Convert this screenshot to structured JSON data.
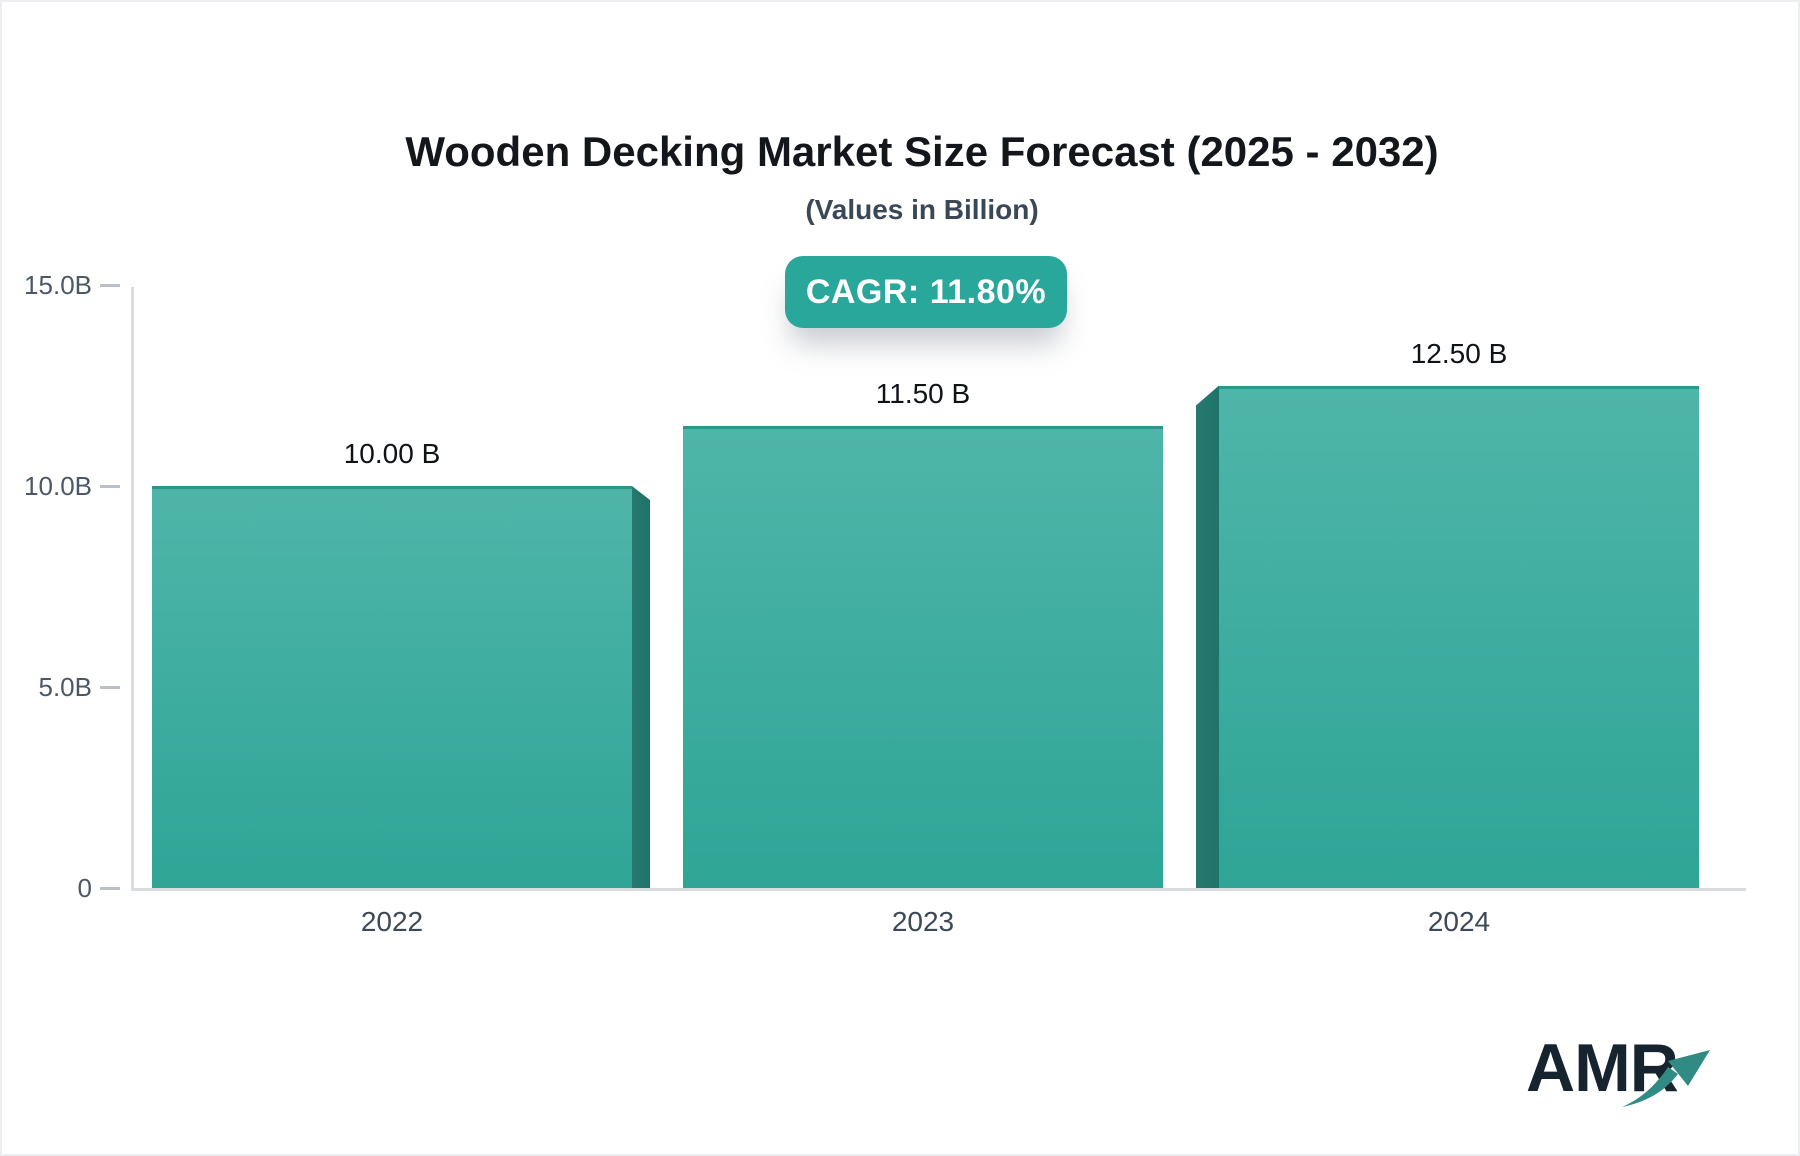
{
  "title": "Wooden Decking Market Size Forecast (2025 - 2032)",
  "subtitle": "(Values in Billion)",
  "badge": {
    "label": "CAGR: 11.80%",
    "bg_color": "#2AA79B",
    "text_color": "#ffffff"
  },
  "logo": {
    "text": "AMR",
    "arrow_icon": "trend-up-arrow",
    "text_color": "#15242E",
    "arrow_color": "#2F8B84"
  },
  "chart_data": {
    "type": "bar",
    "title": "Wooden Decking Market Size Forecast (2025 - 2032)",
    "subtitle": "(Values in Billion)",
    "annotation": "CAGR: 11.80%",
    "categories": [
      "2022",
      "2023",
      "2024"
    ],
    "values": [
      10.0,
      11.5,
      12.5
    ],
    "bar_labels": [
      "10.00 B",
      "11.50 B",
      "12.50 B"
    ],
    "unit": "Billion",
    "ylim": [
      0,
      15
    ],
    "yticks": [
      {
        "label": "15.0B",
        "value": 15
      },
      {
        "label": "10.0B",
        "value": 10
      },
      {
        "label": "5.0B",
        "value": 5
      },
      {
        "label": "0",
        "value": 0
      }
    ],
    "grid": false,
    "legend": false,
    "bar_color_top": "#4FB5A9",
    "bar_color_bottom": "#2FA596",
    "bar_top_edge_color": "#2B968B",
    "bar_side_color": "#1F7369",
    "axis_color": "#d9dde2"
  }
}
